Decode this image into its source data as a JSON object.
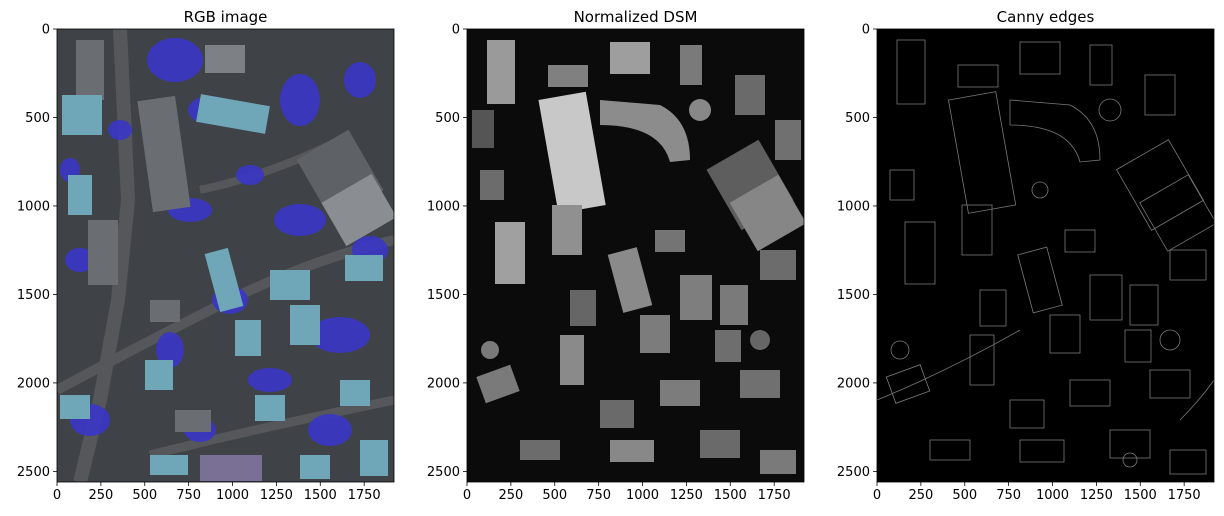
{
  "panels": [
    {
      "title": "RGB image",
      "xticks": [
        "0",
        "250",
        "500",
        "750",
        "1000",
        "1250",
        "1500",
        "1750"
      ],
      "yticks": [
        "0",
        "500",
        "1000",
        "1500",
        "2000",
        "2500"
      ],
      "content": "aerial-rgb-image"
    },
    {
      "title": "Normalized DSM",
      "xticks": [
        "0",
        "250",
        "500",
        "750",
        "1000",
        "1250",
        "1500",
        "1750"
      ],
      "yticks": [
        "0",
        "500",
        "1000",
        "1500",
        "2000",
        "2500"
      ],
      "content": "grayscale-height-map"
    },
    {
      "title": "Canny edges",
      "xticks": [
        "0",
        "250",
        "500",
        "750",
        "1000",
        "1250",
        "1500",
        "1750"
      ],
      "yticks": [
        "0",
        "500",
        "1000",
        "1500",
        "2000",
        "2500"
      ],
      "content": "edge-map"
    }
  ],
  "image_extent": {
    "width": 1920,
    "height": 2560
  },
  "colors": {
    "rgb_road": "#4a4a4d",
    "rgb_vegetation": "#3a36c8",
    "rgb_roof_cyan": "#6fa6b8",
    "rgb_roof_gray": "#6a6e73",
    "dsm_background": "#0b0b0b",
    "dsm_building": "#8a8a8a",
    "edges_background": "#000000",
    "edges_line": "#7a7a7a"
  }
}
